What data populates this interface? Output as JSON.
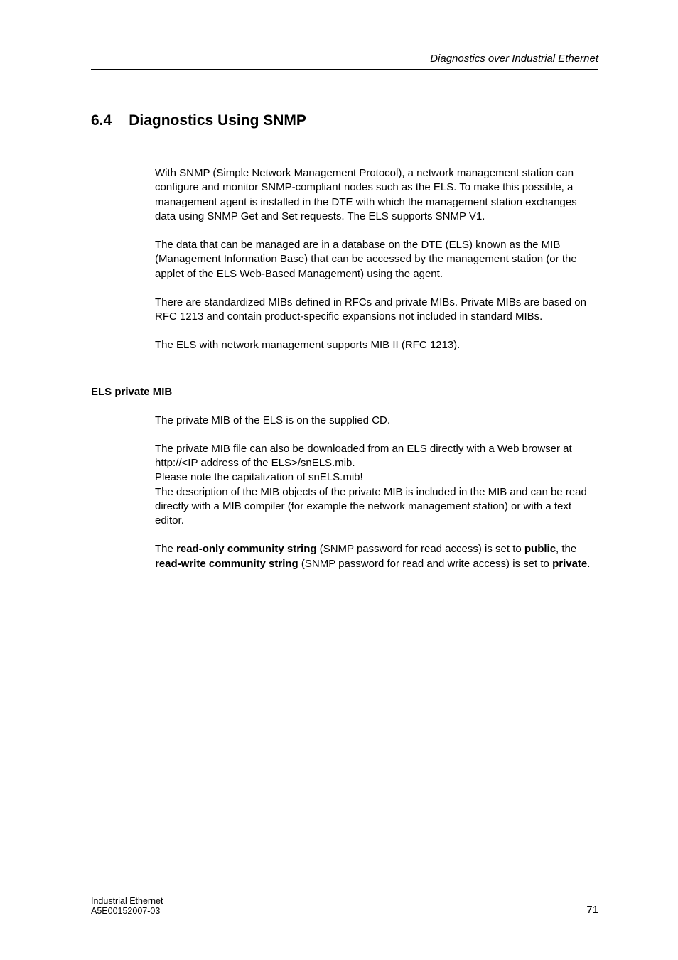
{
  "header": {
    "running_title": "Diagnostics over Industrial Ethernet"
  },
  "section": {
    "number": "6.4",
    "title": "Diagnostics Using SNMP"
  },
  "body": {
    "p1": "With SNMP (Simple Network Management Protocol), a network management station can configure and monitor SNMP-compliant nodes such as the ELS. To make this possible, a management agent is installed in the DTE with which the management station exchanges data using SNMP Get and Set requests. The ELS supports SNMP V1.",
    "p2": "The data that can be managed are in a database on the DTE (ELS) known as the MIB (Management Information Base) that can be accessed by the management station (or the applet of the ELS Web-Based Management) using the agent.",
    "p3": "There are standardized MIBs defined in RFCs and private MIBs. Private MIBs are based on RFC 1213 and contain product-specific expansions not included in standard MIBs.",
    "p4": "The ELS with network management supports MIB II (RFC 1213)."
  },
  "subsection": {
    "heading": "ELS private MIB",
    "p1": "The private MIB of the ELS is on the supplied CD.",
    "p2_line1": "The private MIB file can also be downloaded from an ELS directly with a Web browser at http://<IP address of the ELS>/snELS.mib.",
    "p2_line2": "Please note the capitalization of snELS.mib!",
    "p2_line3": "The description of the MIB objects of the private MIB is included in the MIB and can be read directly with a MIB compiler (for example the network management station) or with a text editor.",
    "p3_pre1": "The ",
    "p3_b1": "read-only community string",
    "p3_mid1": " (SNMP password for read access) is set to ",
    "p3_b2": "public",
    "p3_mid2": ", the ",
    "p3_b3": "read-write community string",
    "p3_mid3": " (SNMP password for read and write access) is set to ",
    "p3_b4": "private",
    "p3_post": "."
  },
  "footer": {
    "line1": "Industrial Ethernet",
    "line2": "A5E00152007-03",
    "page_number": "71"
  }
}
